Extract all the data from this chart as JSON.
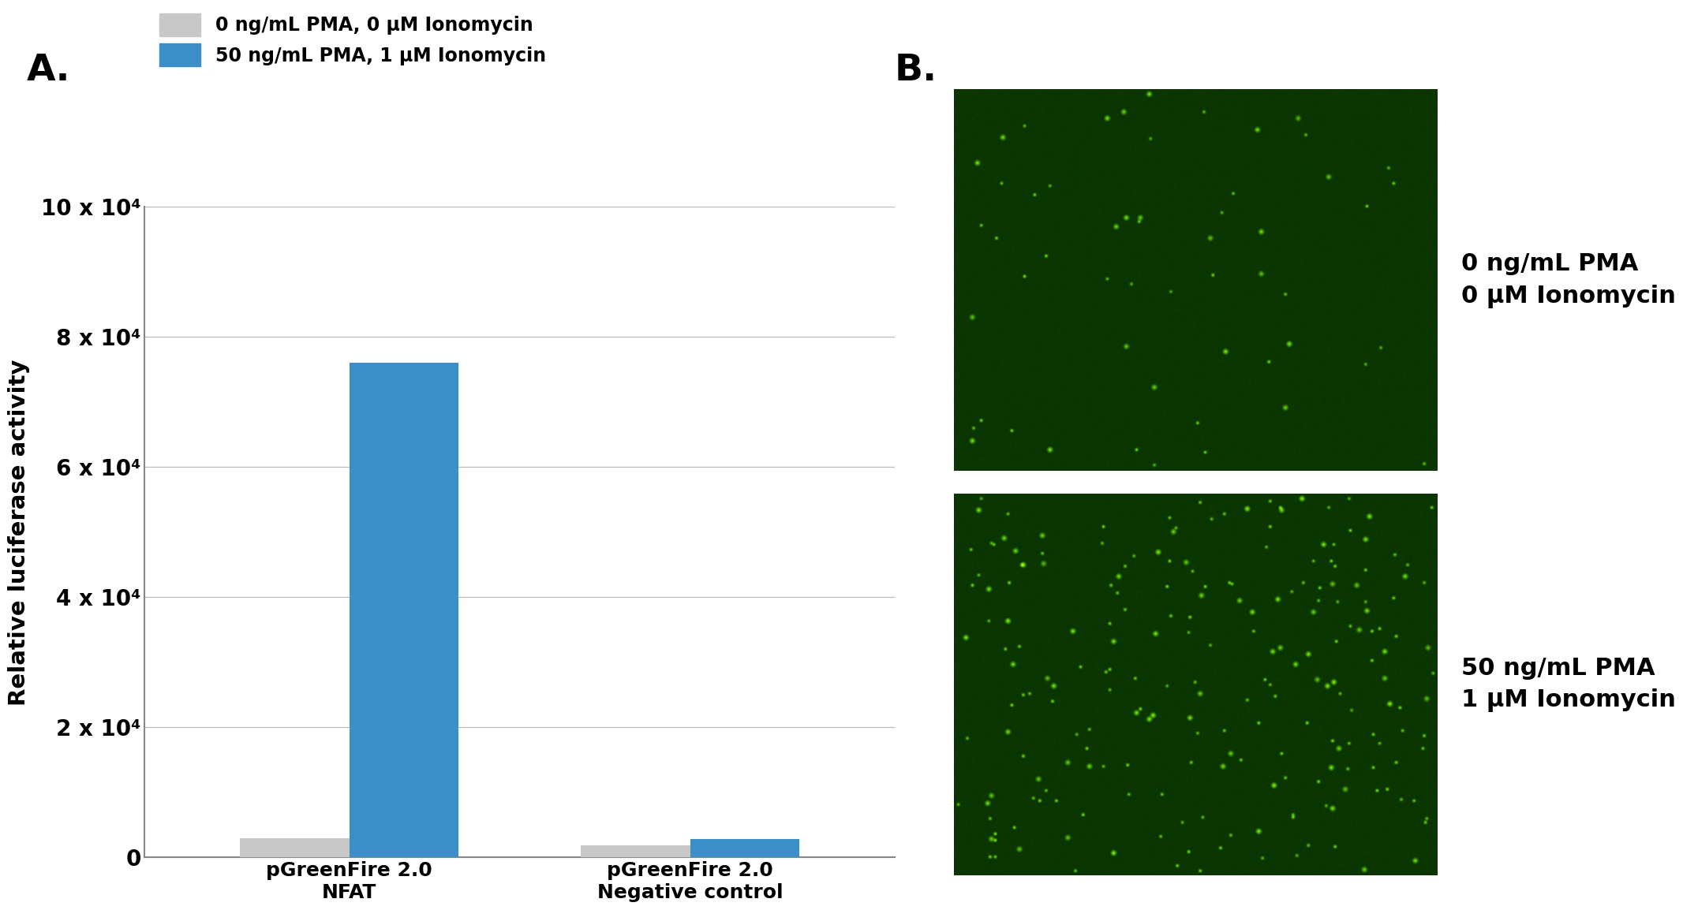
{
  "panel_A_label": "A.",
  "panel_B_label": "B.",
  "categories": [
    "pGreenFire 2.0\nNFAT",
    "pGreenFire 2.0\nNegative control"
  ],
  "bar_gray_values": [
    3000,
    1800
  ],
  "bar_blue_values": [
    76000,
    2800
  ],
  "gray_color": "#c8c8c8",
  "blue_color": "#3b8ec8",
  "ylim": [
    0,
    100000
  ],
  "yticks": [
    0,
    20000,
    40000,
    60000,
    80000,
    100000
  ],
  "ytick_labels": [
    "0",
    "2 x 10⁴",
    "4 x 10⁴",
    "6 x 10⁴",
    "8 x 10⁴",
    "10 x 10⁴"
  ],
  "ylabel": "Relative luciferase activity",
  "legend_gray": "0 ng/mL PMA, 0 μM Ionomycin",
  "legend_blue": "50 ng/mL PMA, 1 μM Ionomycin",
  "img_label_top": "0 ng/mL PMA\n0 μM Ionomycin",
  "img_label_bottom": "50 ng/mL PMA\n1 μM Ionomycin",
  "bar_width": 0.32,
  "grid_color": "#bbbbbb",
  "axis_color": "#888888",
  "bg_color": "#ffffff"
}
